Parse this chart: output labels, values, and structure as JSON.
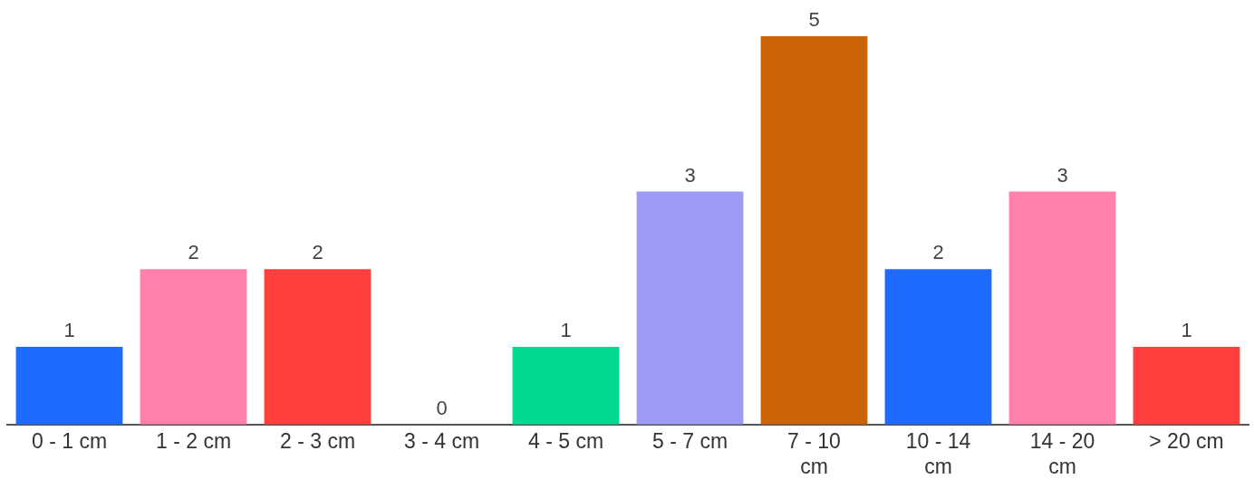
{
  "chart_data": {
    "type": "bar",
    "categories": [
      "0 - 1 cm",
      "1 - 2 cm",
      "2 - 3 cm",
      "3 - 4 cm",
      "4 - 5 cm",
      "5 - 7 cm",
      "7 - 10 cm",
      "10 - 14 cm",
      "14 - 20 cm",
      "> 20 cm"
    ],
    "values": [
      1,
      2,
      2,
      0,
      1,
      3,
      5,
      2,
      3,
      1
    ],
    "colors": [
      "#1f6bff",
      "#ff80aa",
      "#ff403f",
      "#ffc61a",
      "#02d98f",
      "#9b9af5",
      "#cc650a",
      "#1f6bff",
      "#ff80aa",
      "#ff403f"
    ],
    "data_labels": true,
    "grid": false,
    "legend": false
  }
}
